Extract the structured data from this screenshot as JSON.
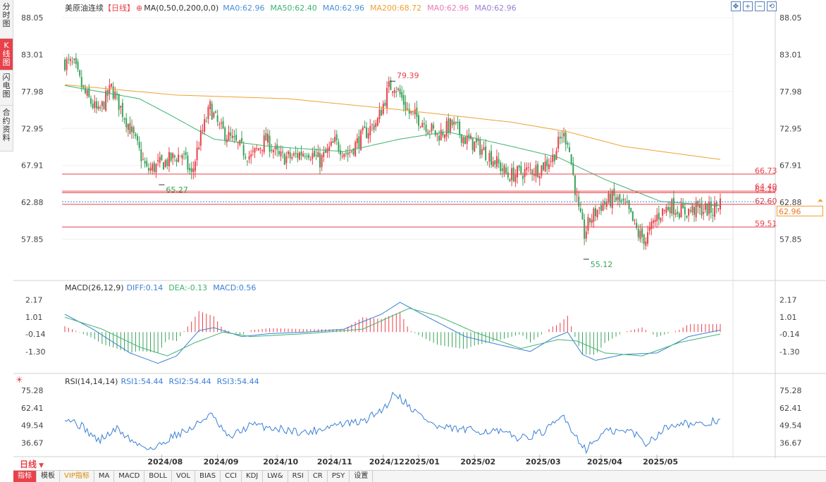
{
  "side_tabs": [
    {
      "label": "分时图",
      "active": false
    },
    {
      "label": "K线图",
      "active": true
    },
    {
      "label": "闪电图",
      "active": false
    },
    {
      "label": "合约资料",
      "active": false
    }
  ],
  "header": {
    "title": "美原油连续",
    "period_tag": "【日线】",
    "ma_indicator": "MA(0,50,0,200,0,0)",
    "ma_values": [
      {
        "text": "MA0:62.96",
        "color": "#4a90d9"
      },
      {
        "text": "MA50:62.40",
        "color": "#3cb371"
      },
      {
        "text": "MA0:62.96",
        "color": "#4a90d9"
      },
      {
        "text": "MA200:68.72",
        "color": "#f0a030"
      },
      {
        "text": "MA0:62.96",
        "color": "#e87ab8"
      },
      {
        "text": "MA0:62.96",
        "color": "#9b7fd4"
      }
    ]
  },
  "toolbar_icons": [
    "move-icon",
    "zoom-in-icon",
    "zoom-out-icon",
    "reset-icon"
  ],
  "current_price": "62.96",
  "macd_header": {
    "name": "MACD(26,12,9)",
    "diff": "DIFF:0.14",
    "dea": "DEA:-0.13",
    "macd": "MACD:0.56"
  },
  "rsi_header": {
    "name": "RSI(14,14,14)",
    "rsi1": "RSI1:54.44",
    "rsi2": "RSI2:54.44",
    "rsi3": "RSI3:54.44"
  },
  "period_label": "日线",
  "bottom_tabs": [
    {
      "label": "指标",
      "active": true
    },
    {
      "label": "模板"
    },
    {
      "label": "VIP指标",
      "vip": true
    },
    {
      "label": "MA"
    },
    {
      "label": "MACD"
    },
    {
      "label": "BOLL"
    },
    {
      "label": "VOL"
    },
    {
      "label": "BIAS"
    },
    {
      "label": "CCI"
    },
    {
      "label": "KDJ"
    },
    {
      "label": "LW&"
    },
    {
      "label": "RSI"
    },
    {
      "label": "CR"
    },
    {
      "label": "PSY"
    },
    {
      "label": "设置"
    }
  ],
  "chart_data": [
    {
      "type": "candlestick",
      "title": "美原油连续",
      "y_ticks": [
        88.05,
        83.01,
        77.98,
        72.95,
        67.91,
        62.88,
        57.85
      ],
      "ylim": [
        52.8,
        89.5
      ],
      "x_labels": [
        "2024/08",
        "2024/09",
        "2024/10",
        "2024/11",
        "2024/12",
        "2025/01",
        "2025/02",
        "2025/03",
        "2025/04",
        "2025/05"
      ],
      "ohlc_anchors_close": [
        [
          0,
          82.0
        ],
        [
          5,
          81.5
        ],
        [
          10,
          78.0
        ],
        [
          18,
          75.0
        ],
        [
          25,
          78.5
        ],
        [
          35,
          73.0
        ],
        [
          44,
          67.2
        ],
        [
          55,
          68.5
        ],
        [
          63,
          69.5
        ],
        [
          68,
          66.5
        ],
        [
          72,
          71.0
        ],
        [
          78,
          75.8
        ],
        [
          83,
          73.0
        ],
        [
          92,
          70.8
        ],
        [
          100,
          69.0
        ],
        [
          108,
          71.5
        ],
        [
          115,
          69.0
        ],
        [
          122,
          69.0
        ],
        [
          130,
          70.0
        ],
        [
          137,
          68.5
        ],
        [
          145,
          71.0
        ],
        [
          152,
          69.5
        ],
        [
          160,
          72.0
        ],
        [
          168,
          74.0
        ],
        [
          174,
          78.5
        ],
        [
          177,
          79.0
        ],
        [
          185,
          75.0
        ],
        [
          192,
          74.0
        ],
        [
          200,
          72.0
        ],
        [
          208,
          73.5
        ],
        [
          215,
          71.5
        ],
        [
          222,
          70.5
        ],
        [
          230,
          68.8
        ],
        [
          238,
          66.5
        ],
        [
          246,
          67.0
        ],
        [
          255,
          67.5
        ],
        [
          262,
          69.0
        ],
        [
          267,
          72.0
        ],
        [
          270,
          71.5
        ],
        [
          273,
          66.5
        ],
        [
          276,
          61.5
        ],
        [
          279,
          58.5
        ],
        [
          282,
          60.5
        ],
        [
          288,
          62.5
        ],
        [
          295,
          63.5
        ],
        [
          302,
          62.0
        ],
        [
          308,
          58.5
        ],
        [
          312,
          57.8
        ],
        [
          318,
          61.0
        ],
        [
          325,
          62.5
        ],
        [
          332,
          61.5
        ],
        [
          340,
          62.0
        ],
        [
          348,
          61.8
        ],
        [
          352,
          62.96
        ]
      ],
      "annotations": [
        {
          "label": "79.39",
          "value": 79.39,
          "bar": 176,
          "color": "#e8414a"
        },
        {
          "label": "65.27",
          "value": 65.27,
          "bar": 52,
          "color": "#3aa35a"
        },
        {
          "label": "55.12",
          "value": 55.12,
          "bar": 280,
          "color": "#3aa35a"
        }
      ],
      "levels": [
        {
          "label": "66.73",
          "value": 66.73
        },
        {
          "label": "64.40",
          "value": 64.4
        },
        {
          "label": "64.19",
          "value": 64.19
        },
        {
          "label": "62.60",
          "value": 62.6
        },
        {
          "label": "59.51",
          "value": 59.51
        }
      ],
      "ma50_anchors": [
        [
          0,
          78.8
        ],
        [
          40,
          77.0
        ],
        [
          55,
          75.0
        ],
        [
          80,
          71.5
        ],
        [
          110,
          70.5
        ],
        [
          150,
          69.8
        ],
        [
          180,
          71.5
        ],
        [
          205,
          72.5
        ],
        [
          240,
          70.5
        ],
        [
          265,
          69.0
        ],
        [
          290,
          66.0
        ],
        [
          320,
          63.0
        ],
        [
          352,
          62.4
        ]
      ],
      "ma200_anchors": [
        [
          0,
          78.9
        ],
        [
          60,
          77.5
        ],
        [
          120,
          77.0
        ],
        [
          180,
          75.5
        ],
        [
          240,
          73.8
        ],
        [
          270,
          72.5
        ],
        [
          300,
          70.5
        ],
        [
          352,
          68.72
        ]
      ]
    },
    {
      "type": "bar+line",
      "title": "MACD(26,12,9)",
      "y_ticks": [
        2.17,
        1.01,
        -0.14,
        -1.3
      ],
      "ylim": [
        -2.4,
        2.9
      ],
      "diff_anchors": [
        [
          0,
          1.2
        ],
        [
          15,
          0.2
        ],
        [
          35,
          -1.4
        ],
        [
          50,
          -2.1
        ],
        [
          60,
          -1.6
        ],
        [
          72,
          0.1
        ],
        [
          80,
          0.3
        ],
        [
          95,
          -0.3
        ],
        [
          110,
          -0.1
        ],
        [
          130,
          0.0
        ],
        [
          150,
          0.2
        ],
        [
          170,
          1.2
        ],
        [
          180,
          2.0
        ],
        [
          195,
          1.0
        ],
        [
          215,
          -0.3
        ],
        [
          235,
          -0.9
        ],
        [
          250,
          -1.3
        ],
        [
          262,
          -0.4
        ],
        [
          270,
          0.0
        ],
        [
          278,
          -1.5
        ],
        [
          285,
          -1.9
        ],
        [
          300,
          -1.5
        ],
        [
          318,
          -1.4
        ],
        [
          335,
          -0.3
        ],
        [
          352,
          0.14
        ]
      ],
      "dea_anchors": [
        [
          0,
          1.0
        ],
        [
          20,
          0.2
        ],
        [
          40,
          -1.0
        ],
        [
          55,
          -1.6
        ],
        [
          70,
          -0.7
        ],
        [
          85,
          0.0
        ],
        [
          100,
          -0.3
        ],
        [
          130,
          -0.1
        ],
        [
          160,
          0.2
        ],
        [
          185,
          1.6
        ],
        [
          200,
          1.1
        ],
        [
          220,
          0.0
        ],
        [
          245,
          -1.1
        ],
        [
          265,
          -0.5
        ],
        [
          275,
          -0.6
        ],
        [
          290,
          -1.4
        ],
        [
          310,
          -1.6
        ],
        [
          330,
          -0.7
        ],
        [
          352,
          -0.13
        ]
      ]
    },
    {
      "type": "line",
      "title": "RSI(14,14,14)",
      "y_ticks": [
        75.28,
        62.41,
        49.54,
        36.67
      ],
      "ylim": [
        28,
        80
      ],
      "rsi_anchors": [
        [
          0,
          56
        ],
        [
          10,
          48
        ],
        [
          18,
          38
        ],
        [
          28,
          47
        ],
        [
          38,
          36
        ],
        [
          48,
          32
        ],
        [
          58,
          42
        ],
        [
          68,
          47
        ],
        [
          78,
          58
        ],
        [
          88,
          40
        ],
        [
          100,
          50
        ],
        [
          115,
          47
        ],
        [
          130,
          44
        ],
        [
          145,
          50
        ],
        [
          160,
          52
        ],
        [
          172,
          63
        ],
        [
          177,
          74
        ],
        [
          188,
          60
        ],
        [
          200,
          48
        ],
        [
          215,
          46
        ],
        [
          232,
          45
        ],
        [
          245,
          40
        ],
        [
          258,
          45
        ],
        [
          268,
          57
        ],
        [
          274,
          42
        ],
        [
          280,
          32
        ],
        [
          290,
          45
        ],
        [
          305,
          45
        ],
        [
          312,
          36
        ],
        [
          322,
          47
        ],
        [
          330,
          52
        ],
        [
          342,
          49
        ],
        [
          352,
          54.44
        ]
      ]
    }
  ]
}
